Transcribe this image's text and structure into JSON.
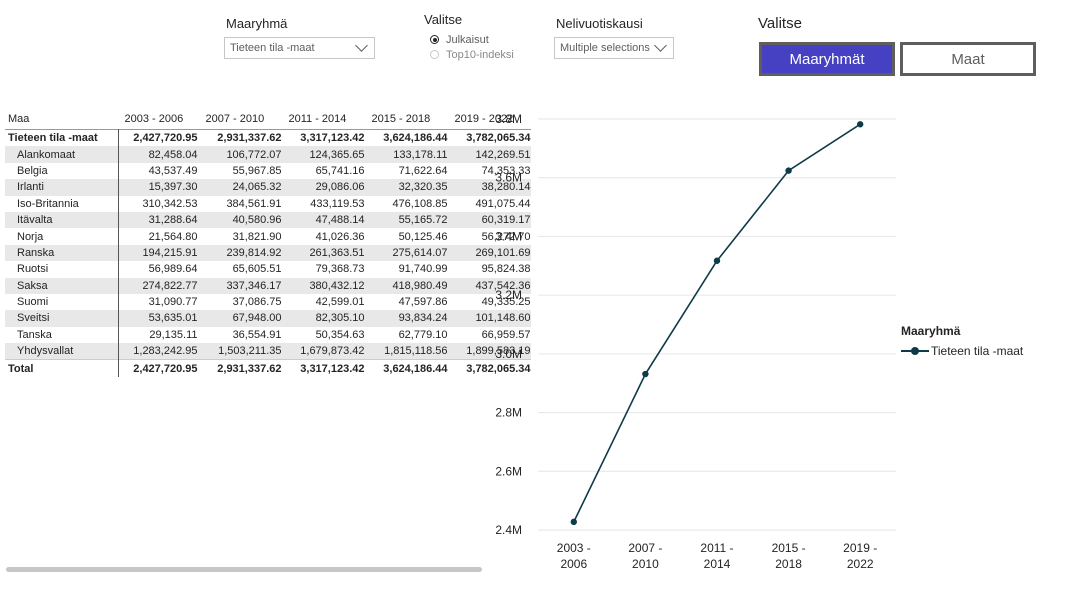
{
  "slicers": {
    "maaryhma": {
      "title": "Maaryhmä",
      "selected": "Tieteen tila -maat"
    },
    "valitse_radio": {
      "title": "Valitse",
      "options": [
        {
          "label": "Julkaisut",
          "selected": true
        },
        {
          "label": "Top10-indeksi",
          "selected": false
        }
      ]
    },
    "nelivuotiskausi": {
      "title": "Nelivuotiskausi",
      "selected": "Multiple selections"
    }
  },
  "toggle": {
    "title": "Valitse",
    "buttons": [
      {
        "label": "Maaryhmät",
        "active": true
      },
      {
        "label": "Maat",
        "active": false
      }
    ]
  },
  "table": {
    "headers": [
      "Maa",
      "2003 - 2006",
      "2007 - 2010",
      "2011 - 2014",
      "2015 - 2018",
      "2019 - 2022"
    ],
    "group": {
      "name": "Tieteen tila -maat",
      "values": [
        "2,427,720.95",
        "2,931,337.62",
        "3,317,123.42",
        "3,624,186.44",
        "3,782,065.34"
      ]
    },
    "rows": [
      {
        "name": "Alankomaat",
        "values": [
          "82,458.04",
          "106,772.07",
          "124,365.65",
          "133,178.11",
          "142,269.51"
        ]
      },
      {
        "name": "Belgia",
        "values": [
          "43,537.49",
          "55,967.85",
          "65,741.16",
          "71,622.64",
          "74,353.33"
        ]
      },
      {
        "name": "Irlanti",
        "values": [
          "15,397.30",
          "24,065.32",
          "29,086.06",
          "32,320.35",
          "38,280.14"
        ]
      },
      {
        "name": "Iso-Britannia",
        "values": [
          "310,342.53",
          "384,561.91",
          "433,119.53",
          "476,108.85",
          "491,075.44"
        ]
      },
      {
        "name": "Itävalta",
        "values": [
          "31,288.64",
          "40,580.96",
          "47,488.14",
          "55,165.72",
          "60,319.17"
        ]
      },
      {
        "name": "Norja",
        "values": [
          "21,564.80",
          "31,821.90",
          "41,026.36",
          "50,125.46",
          "56,272.70"
        ]
      },
      {
        "name": "Ranska",
        "values": [
          "194,215.91",
          "239,814.92",
          "261,363.51",
          "275,614.07",
          "269,101.69"
        ]
      },
      {
        "name": "Ruotsi",
        "values": [
          "56,989.64",
          "65,605.51",
          "79,368.73",
          "91,740.99",
          "95,824.38"
        ]
      },
      {
        "name": "Saksa",
        "values": [
          "274,822.77",
          "337,346.17",
          "380,432.12",
          "418,980.49",
          "437,542.36"
        ]
      },
      {
        "name": "Suomi",
        "values": [
          "31,090.77",
          "37,086.75",
          "42,599.01",
          "47,597.86",
          "49,335.25"
        ]
      },
      {
        "name": "Sveitsi",
        "values": [
          "53,635.01",
          "67,948.00",
          "82,305.10",
          "93,834.24",
          "101,148.60"
        ]
      },
      {
        "name": "Tanska",
        "values": [
          "29,135.11",
          "36,554.91",
          "50,354.63",
          "62,779.10",
          "66,959.57"
        ]
      },
      {
        "name": "Yhdysvallat",
        "values": [
          "1,283,242.95",
          "1,503,211.35",
          "1,679,873.42",
          "1,815,118.56",
          "1,899,583.19"
        ]
      }
    ],
    "total": {
      "name": "Total",
      "values": [
        "2,427,720.95",
        "2,931,337.62",
        "3,317,123.42",
        "3,624,186.44",
        "3,782,065.34"
      ]
    }
  },
  "chart_data": {
    "type": "line",
    "categories": [
      [
        "2003 -",
        "2006"
      ],
      [
        "2007 -",
        "2010"
      ],
      [
        "2011 -",
        "2014"
      ],
      [
        "2015 -",
        "2018"
      ],
      [
        "2019 -",
        "2022"
      ]
    ],
    "series": [
      {
        "name": "Tieteen tila -maat",
        "color": "#0e3a4a",
        "values": [
          2427720.95,
          2931337.62,
          3317123.42,
          3624186.44,
          3782065.34
        ]
      }
    ],
    "ylim": [
      2400000,
      3800000
    ],
    "yticks": [
      2400000,
      2600000,
      2800000,
      3000000,
      3200000,
      3400000,
      3600000,
      3800000
    ],
    "ytick_labels": [
      "2.4M",
      "2.6M",
      "2.8M",
      "3.0M",
      "3.2M",
      "3.4M",
      "3.6M",
      "3.8M"
    ],
    "legend": {
      "title": "Maaryhmä",
      "position": "right"
    },
    "grid": true
  },
  "colors": {
    "accent": "#4640c2",
    "line": "#0e3a4a",
    "row_alt": "#e8e8e8"
  }
}
